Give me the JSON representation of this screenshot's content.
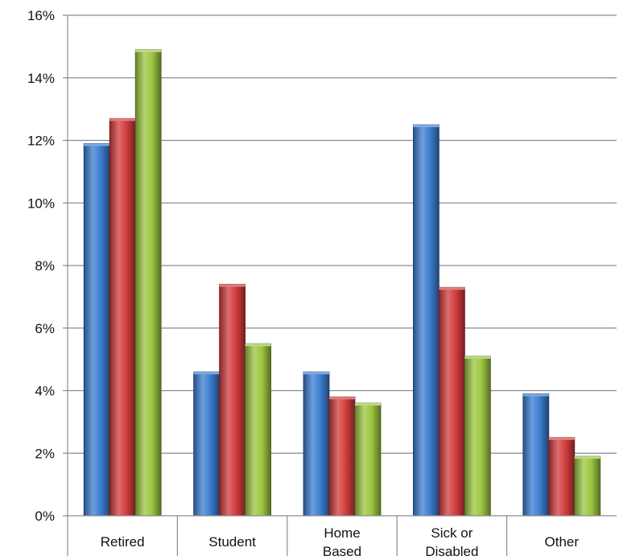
{
  "chart_data": {
    "type": "bar",
    "title": "",
    "xlabel": "",
    "ylabel": "",
    "categories": [
      [
        "Retired"
      ],
      [
        "Student"
      ],
      [
        "Home",
        "Based"
      ],
      [
        "Sick or",
        "Disabled"
      ],
      [
        "Other"
      ]
    ],
    "series": [
      {
        "color": "#3c7dd1",
        "values": [
          11.9,
          4.6,
          4.6,
          12.5,
          3.9
        ]
      },
      {
        "color": "#d23c3c",
        "values": [
          12.7,
          7.4,
          3.8,
          7.3,
          2.5
        ]
      },
      {
        "color": "#9cc640",
        "values": [
          14.9,
          5.5,
          3.6,
          5.1,
          1.9
        ]
      }
    ],
    "ylim": [
      0,
      16
    ],
    "yticks": [
      0,
      2,
      4,
      6,
      8,
      10,
      12,
      14,
      16
    ],
    "ytick_labels": [
      "0%",
      "2%",
      "4%",
      "6%",
      "8%",
      "10%",
      "12%",
      "14%",
      "16%"
    ],
    "grid": true,
    "legend": "none"
  }
}
